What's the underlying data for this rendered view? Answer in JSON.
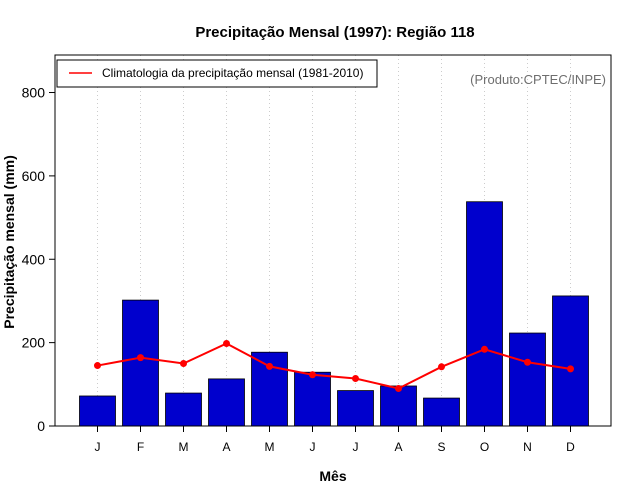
{
  "chart_data": {
    "type": "bar",
    "title": "Precipitação Mensal (1997): Região 118",
    "xlabel": "Mês",
    "ylabel": "Precipitação mensal (mm)",
    "categories": [
      "J",
      "F",
      "M",
      "A",
      "M",
      "J",
      "J",
      "A",
      "S",
      "O",
      "N",
      "D"
    ],
    "ylim": [
      0,
      890
    ],
    "yticks": [
      0,
      200,
      400,
      600,
      800
    ],
    "grid": "vertical-dotted",
    "series": [
      {
        "name": "Precipitação mensal 1997",
        "kind": "bar",
        "color": "#0000cd",
        "values": [
          72,
          302,
          79,
          113,
          177,
          129,
          85,
          96,
          67,
          538,
          223,
          312
        ]
      },
      {
        "name": "Climatologia da precipitação mensal (1981-2010)",
        "kind": "line",
        "color": "#ff0000",
        "values": [
          145,
          164,
          150,
          198,
          143,
          123,
          114,
          90,
          142,
          184,
          153,
          137
        ]
      }
    ],
    "legend": {
      "position": "top-left",
      "entries": [
        "Climatologia da precipitação mensal (1981-2010)"
      ]
    },
    "annotation": "(Produto:CPTEC/INPE)"
  }
}
